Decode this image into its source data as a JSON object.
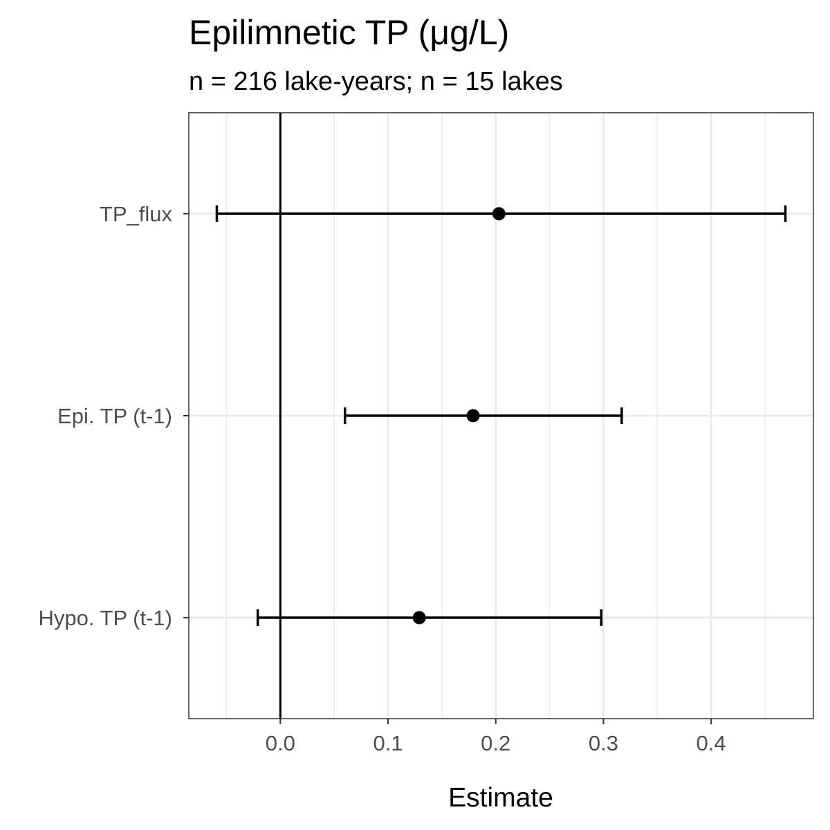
{
  "chart_data": {
    "type": "scatter",
    "title": "Epilimnetic TP (μg/L)",
    "subtitle": "n = 216 lake-years; n = 15 lakes",
    "xlabel": "Estimate",
    "ylabel": "",
    "xlim": [
      -0.085,
      0.495
    ],
    "x_ticks": [
      0.0,
      0.1,
      0.2,
      0.3,
      0.4
    ],
    "x_tick_labels": [
      "0.0",
      "0.1",
      "0.2",
      "0.3",
      "0.4"
    ],
    "reference_line_x": 0,
    "grid": true,
    "legend": "none",
    "categories": [
      "TP_flux",
      "Epi. TP (t-1)",
      "Hypo. TP (t-1)"
    ],
    "points": [
      {
        "term": "TP_flux",
        "estimate": 0.203,
        "conf_low": -0.059,
        "conf_high": 0.469
      },
      {
        "term": "Epi. TP (t-1)",
        "estimate": 0.179,
        "conf_low": 0.06,
        "conf_high": 0.317
      },
      {
        "term": "Hypo. TP (t-1)",
        "estimate": 0.129,
        "conf_low": -0.021,
        "conf_high": 0.298
      }
    ],
    "colors": {
      "point": "#000000",
      "grid": "#ebebeb",
      "panel_border": "#333333",
      "tick_text": "#4d4d4d"
    }
  }
}
